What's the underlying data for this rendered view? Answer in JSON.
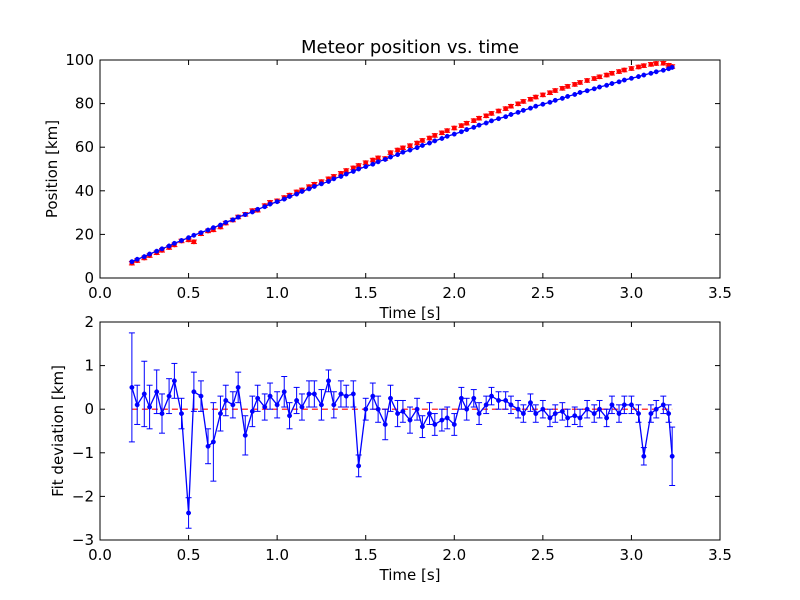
{
  "chart_data": [
    {
      "type": "line",
      "title": "Meteor position vs. time",
      "xlabel": "Time [s]",
      "ylabel": "Position [km]",
      "xlim": [
        0.0,
        3.5
      ],
      "ylim": [
        0,
        100
      ],
      "xticks": [
        "0.0",
        "0.5",
        "1.0",
        "1.5",
        "2.0",
        "2.5",
        "3.0",
        "3.5"
      ],
      "yticks": [
        "0",
        "20",
        "40",
        "60",
        "80",
        "100"
      ],
      "grid": false,
      "series": [
        {
          "style": "markers-with-errorbars",
          "color": "#ff0000",
          "x": [
            0.18,
            0.21,
            0.25,
            0.28,
            0.32,
            0.35,
            0.39,
            0.42,
            0.46,
            0.5,
            0.53,
            0.57,
            0.61,
            0.64,
            0.68,
            0.71,
            0.75,
            0.78,
            0.82,
            0.86,
            0.89,
            0.93,
            0.96,
            1.0,
            1.04,
            1.07,
            1.11,
            1.14,
            1.18,
            1.21,
            1.25,
            1.29,
            1.32,
            1.36,
            1.39,
            1.43,
            1.46,
            1.5,
            1.54,
            1.57,
            1.61,
            1.64,
            1.68,
            1.71,
            1.75,
            1.79,
            1.82,
            1.86,
            1.89,
            1.93,
            1.96,
            2.0,
            2.04,
            2.07,
            2.11,
            2.14,
            2.18,
            2.21,
            2.25,
            2.29,
            2.32,
            2.36,
            2.39,
            2.43,
            2.46,
            2.5,
            2.54,
            2.57,
            2.61,
            2.64,
            2.68,
            2.71,
            2.75,
            2.79,
            2.82,
            2.86,
            2.89,
            2.93,
            2.96,
            3.0,
            3.04,
            3.07,
            3.11,
            3.14,
            3.18,
            3.21,
            3.23
          ],
          "y": [
            6.8,
            8.0,
            9.2,
            10.3,
            11.6,
            12.7,
            14.0,
            15.2,
            17.0,
            17.5,
            16.6,
            20.3,
            21.6,
            22.1,
            23.4,
            25.2,
            26.6,
            28.0,
            29.2,
            30.9,
            31.1,
            33.2,
            34.7,
            35.4,
            36.9,
            38.0,
            39.5,
            40.4,
            41.9,
            43.0,
            44.2,
            45.5,
            46.6,
            48.0,
            49.3,
            50.5,
            51.6,
            52.9,
            54.1,
            55.1,
            54.8,
            57.5,
            58.7,
            59.7,
            60.7,
            61.9,
            63.1,
            64.2,
            65.4,
            66.6,
            67.6,
            68.8,
            69.9,
            71.0,
            72.2,
            73.3,
            74.4,
            75.5,
            76.6,
            77.7,
            78.8,
            79.9,
            81.0,
            82.0,
            83.0,
            84.0,
            85.0,
            86.0,
            87.0,
            87.9,
            88.8,
            89.7,
            90.6,
            91.5,
            92.3,
            93.1,
            93.9,
            94.7,
            95.4,
            96.1,
            96.8,
            97.4,
            98.0,
            98.4,
            98.5,
            97.6,
            97.0
          ],
          "yerr": 0.8
        },
        {
          "style": "fit-line-with-markers",
          "color": "#0000ff",
          "x": [
            0.18,
            0.21,
            0.25,
            0.28,
            0.32,
            0.35,
            0.39,
            0.42,
            0.46,
            0.5,
            0.53,
            0.57,
            0.61,
            0.64,
            0.68,
            0.71,
            0.75,
            0.78,
            0.82,
            0.86,
            0.89,
            0.93,
            0.96,
            1.0,
            1.04,
            1.07,
            1.11,
            1.14,
            1.18,
            1.21,
            1.25,
            1.29,
            1.32,
            1.36,
            1.39,
            1.43,
            1.46,
            1.5,
            1.54,
            1.57,
            1.61,
            1.64,
            1.68,
            1.71,
            1.75,
            1.79,
            1.82,
            1.86,
            1.89,
            1.93,
            1.96,
            2.0,
            2.04,
            2.07,
            2.11,
            2.14,
            2.18,
            2.21,
            2.25,
            2.29,
            2.32,
            2.36,
            2.39,
            2.43,
            2.46,
            2.5,
            2.54,
            2.57,
            2.61,
            2.64,
            2.68,
            2.71,
            2.75,
            2.79,
            2.82,
            2.86,
            2.89,
            2.93,
            2.96,
            3.0,
            3.04,
            3.07,
            3.11,
            3.14,
            3.18,
            3.21,
            3.23
          ],
          "y": [
            7.5,
            8.6,
            9.8,
            11.0,
            12.3,
            13.4,
            14.7,
            15.9,
            17.2,
            18.5,
            19.6,
            20.8,
            22.0,
            23.1,
            24.3,
            25.5,
            26.7,
            27.9,
            29.1,
            30.3,
            31.5,
            32.7,
            33.9,
            35.0,
            36.2,
            37.4,
            38.5,
            39.7,
            40.9,
            42.0,
            43.2,
            44.3,
            45.5,
            46.6,
            47.7,
            48.9,
            50.0,
            51.1,
            52.2,
            53.3,
            54.4,
            55.5,
            56.6,
            57.7,
            58.7,
            59.8,
            60.8,
            61.9,
            62.9,
            64.0,
            65.0,
            66.0,
            67.1,
            68.1,
            69.1,
            70.1,
            71.1,
            72.1,
            73.1,
            74.0,
            75.0,
            76.0,
            76.9,
            77.9,
            78.8,
            79.7,
            80.6,
            81.5,
            82.4,
            83.3,
            84.2,
            85.1,
            85.9,
            86.8,
            87.6,
            88.4,
            89.2,
            90.0,
            90.8,
            91.6,
            92.4,
            93.1,
            93.9,
            94.6,
            95.3,
            96.0,
            96.6
          ]
        }
      ]
    },
    {
      "type": "line",
      "title": "",
      "xlabel": "Time [s]",
      "ylabel": "Fit deviation [km]",
      "xlim": [
        0.0,
        3.5
      ],
      "ylim": [
        -3,
        2
      ],
      "xticks": [
        "0.0",
        "0.5",
        "1.0",
        "1.5",
        "2.0",
        "2.5",
        "3.0",
        "3.5"
      ],
      "yticks": [
        "−3",
        "−2",
        "−1",
        "0",
        "1",
        "2"
      ],
      "grid": false,
      "reference_line": {
        "y": 0,
        "color": "#ff0000",
        "style": "dashed"
      },
      "series": [
        {
          "style": "line-with-markers-and-errorbars",
          "color": "#0000ff",
          "x": [
            0.18,
            0.21,
            0.25,
            0.28,
            0.32,
            0.35,
            0.39,
            0.42,
            0.46,
            0.5,
            0.53,
            0.57,
            0.61,
            0.64,
            0.68,
            0.71,
            0.75,
            0.78,
            0.82,
            0.86,
            0.89,
            0.93,
            0.96,
            1.0,
            1.04,
            1.07,
            1.11,
            1.14,
            1.18,
            1.21,
            1.25,
            1.29,
            1.32,
            1.36,
            1.39,
            1.43,
            1.46,
            1.5,
            1.54,
            1.57,
            1.61,
            1.64,
            1.68,
            1.71,
            1.75,
            1.79,
            1.82,
            1.86,
            1.89,
            1.93,
            1.96,
            2.0,
            2.04,
            2.07,
            2.11,
            2.14,
            2.18,
            2.21,
            2.25,
            2.29,
            2.32,
            2.36,
            2.39,
            2.43,
            2.46,
            2.5,
            2.54,
            2.57,
            2.61,
            2.64,
            2.68,
            2.71,
            2.75,
            2.79,
            2.82,
            2.86,
            2.89,
            2.93,
            2.96,
            3.0,
            3.04,
            3.07,
            3.11,
            3.14,
            3.18,
            3.21,
            3.23
          ],
          "y": [
            0.5,
            0.1,
            0.35,
            0.05,
            0.4,
            -0.1,
            0.3,
            0.65,
            -0.1,
            -2.38,
            0.4,
            0.3,
            -0.85,
            -0.75,
            -0.1,
            0.2,
            0.1,
            0.5,
            -0.6,
            -0.05,
            0.25,
            0.05,
            0.3,
            0.1,
            0.4,
            -0.15,
            0.2,
            0.05,
            0.35,
            0.35,
            0.1,
            0.65,
            0.1,
            0.35,
            0.3,
            0.35,
            -1.3,
            0.0,
            0.3,
            0.0,
            -0.35,
            0.25,
            -0.1,
            -0.05,
            -0.25,
            0.0,
            -0.4,
            -0.1,
            -0.35,
            -0.25,
            -0.2,
            -0.35,
            0.25,
            0.0,
            0.25,
            -0.1,
            0.1,
            0.3,
            0.2,
            0.2,
            0.1,
            0.0,
            -0.1,
            0.15,
            -0.1,
            0.0,
            -0.2,
            -0.1,
            -0.05,
            -0.2,
            -0.15,
            -0.2,
            0.0,
            -0.1,
            0.0,
            -0.2,
            0.1,
            -0.1,
            0.1,
            0.1,
            -0.1,
            -1.08,
            -0.1,
            0.0,
            0.1,
            -0.1,
            -1.08
          ],
          "yerr": [
            1.25,
            0.45,
            0.75,
            0.5,
            0.5,
            0.45,
            0.4,
            0.4,
            0.35,
            0.35,
            0.45,
            0.35,
            0.4,
            0.9,
            0.4,
            0.35,
            0.3,
            0.35,
            0.45,
            0.35,
            0.3,
            0.3,
            0.3,
            0.3,
            0.35,
            0.3,
            0.3,
            0.3,
            0.3,
            0.3,
            0.35,
            0.25,
            0.3,
            0.3,
            0.25,
            0.3,
            0.25,
            0.25,
            0.3,
            0.3,
            0.35,
            0.3,
            0.3,
            0.25,
            0.3,
            0.25,
            0.25,
            0.25,
            0.25,
            0.25,
            0.25,
            0.25,
            0.25,
            0.25,
            0.2,
            0.25,
            0.2,
            0.2,
            0.2,
            0.2,
            0.2,
            0.2,
            0.2,
            0.2,
            0.2,
            0.2,
            0.2,
            0.2,
            0.2,
            0.2,
            0.2,
            0.2,
            0.2,
            0.2,
            0.2,
            0.2,
            0.2,
            0.2,
            0.2,
            0.2,
            0.2,
            0.2,
            0.2,
            0.2,
            0.2,
            0.2,
            0.67
          ]
        }
      ]
    }
  ]
}
